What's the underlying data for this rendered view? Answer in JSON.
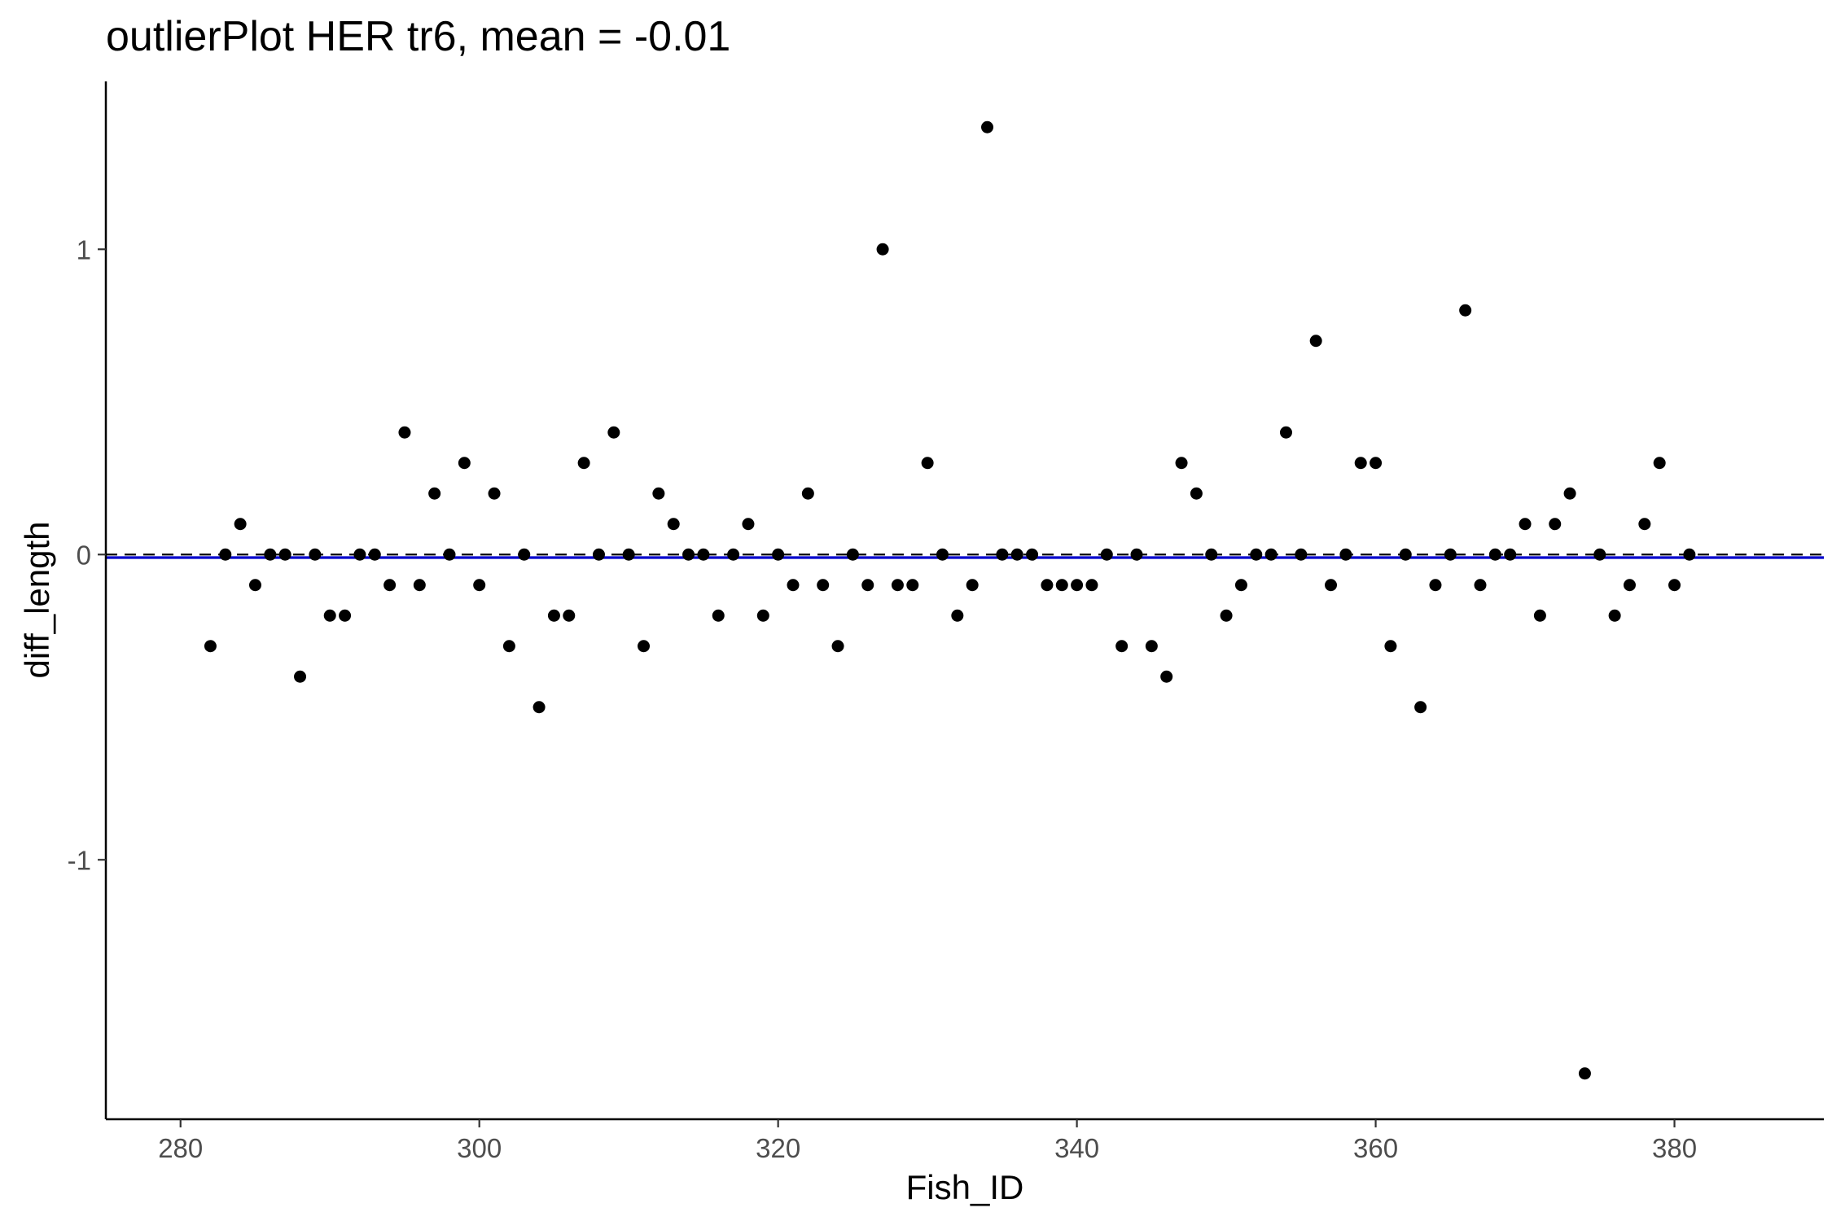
{
  "chart_data": {
    "type": "scatter",
    "title": "outlierPlot HER tr6, mean = -0.01",
    "xlabel": "Fish_ID",
    "ylabel": "diff_length",
    "xlim": [
      275,
      390
    ],
    "ylim": [
      -1.85,
      1.55
    ],
    "xticks": [
      280,
      300,
      320,
      340,
      360,
      380
    ],
    "xtick_labels": [
      "280",
      "300",
      "320",
      "340",
      "360",
      "380"
    ],
    "yticks": [
      -1,
      0,
      1
    ],
    "ytick_labels": [
      "-1",
      "0",
      "1"
    ],
    "grid": false,
    "mean_line": {
      "value": -0.01,
      "color": "#0000cc",
      "style": "solid"
    },
    "zero_line": {
      "value": 0,
      "color": "#000000",
      "style": "dashed"
    },
    "point_color": "#000000",
    "series": [
      {
        "x": [
          282,
          283,
          284,
          285,
          286,
          287,
          288,
          289,
          290,
          291,
          292,
          293,
          294,
          295,
          296,
          297,
          298,
          299,
          300,
          301,
          302,
          303,
          304,
          305,
          306,
          307,
          308,
          309,
          310,
          311,
          312,
          313,
          314,
          315,
          316,
          317,
          318,
          319,
          320,
          321,
          322,
          323,
          324,
          325,
          326,
          327,
          328,
          329,
          330,
          331,
          332,
          333,
          334,
          335,
          336,
          337,
          338,
          339,
          340,
          341,
          342,
          343,
          344,
          345,
          346,
          347,
          348,
          349,
          350,
          351,
          352,
          353,
          354,
          355,
          356,
          357,
          358,
          359,
          360,
          361,
          362,
          363,
          364,
          365,
          366,
          367,
          368,
          369,
          370,
          371,
          372,
          373,
          374,
          375,
          376,
          377,
          378,
          379,
          380,
          381
        ],
        "y": [
          -0.3,
          0,
          0.1,
          -0.1,
          0,
          0,
          -0.4,
          0,
          -0.2,
          -0.2,
          0,
          0,
          -0.1,
          0.4,
          -0.1,
          0.2,
          0,
          0.3,
          -0.1,
          0.2,
          -0.3,
          0,
          -0.5,
          -0.2,
          -0.2,
          0.3,
          0,
          0.4,
          0,
          -0.3,
          0.2,
          0.1,
          0,
          0,
          -0.2,
          0,
          0.1,
          -0.2,
          0,
          -0.1,
          0.2,
          -0.1,
          -0.3,
          0,
          -0.1,
          1,
          -0.1,
          -0.1,
          0.3,
          0,
          -0.2,
          -0.1,
          1.4,
          0,
          0,
          0,
          -0.1,
          -0.1,
          -0.1,
          -0.1,
          0,
          -0.3,
          0,
          -0.3,
          -0.4,
          0.3,
          0.2,
          0,
          -0.2,
          -0.1,
          0,
          0,
          0.4,
          0,
          0.7,
          -0.1,
          0,
          0.3,
          0.3,
          -0.3,
          0,
          -0.5,
          -0.1,
          0,
          0.8,
          -0.1,
          0,
          0,
          0.1,
          -0.2,
          0.1,
          0.2,
          -1.7,
          0,
          -0.2,
          -0.1,
          0.1,
          0.3,
          -0.1,
          0
        ]
      }
    ]
  }
}
